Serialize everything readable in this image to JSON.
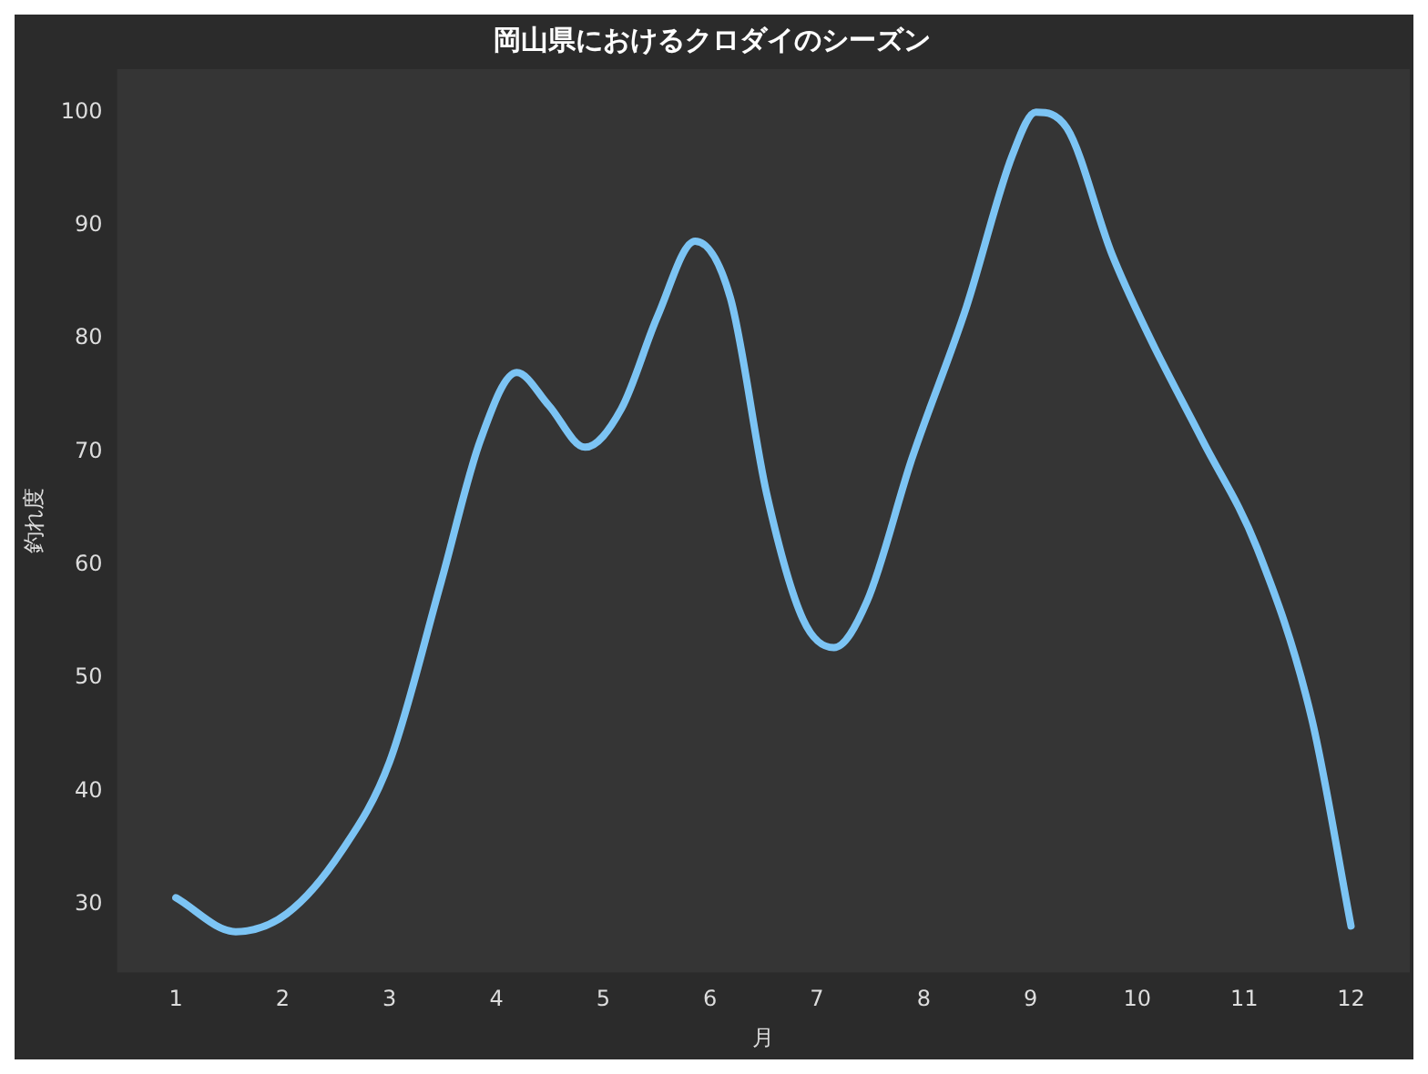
{
  "chart_data": {
    "type": "line",
    "title": "岡山県におけるクロダイのシーズン",
    "xlabel": "月",
    "ylabel": "釣れ度",
    "series": [
      {
        "color": "#7cc4f4",
        "x": [
          1,
          1.56,
          2.04,
          2.55,
          3.0,
          3.48,
          3.85,
          4.19,
          4.49,
          4.83,
          5.17,
          5.51,
          5.86,
          6.19,
          6.53,
          6.87,
          7.16,
          7.47,
          7.89,
          8.4,
          8.83,
          9.05,
          9.34,
          9.76,
          10.1,
          10.61,
          11.12,
          11.63,
          12
        ],
        "values": [
          30.6,
          27.6,
          29.2,
          34.7,
          42.6,
          58.4,
          71,
          77,
          74.1,
          70.4,
          73.8,
          82,
          88.6,
          83.6,
          66.3,
          55.2,
          52.7,
          56.8,
          69.4,
          82.8,
          96.2,
          100,
          98.6,
          87.5,
          80.4,
          71,
          61.5,
          46.5,
          28.1
        ]
      }
    ],
    "xlim": [
      0.45,
      12.55
    ],
    "xticks": [
      1,
      2,
      3,
      4,
      5,
      6,
      7,
      8,
      9,
      10,
      11,
      12
    ],
    "ylim": [
      24,
      103.8
    ],
    "yticks": [
      30,
      40,
      50,
      60,
      70,
      80,
      90,
      100
    ],
    "grid": false,
    "legend": false,
    "marker": "none",
    "line_style": "solid"
  }
}
